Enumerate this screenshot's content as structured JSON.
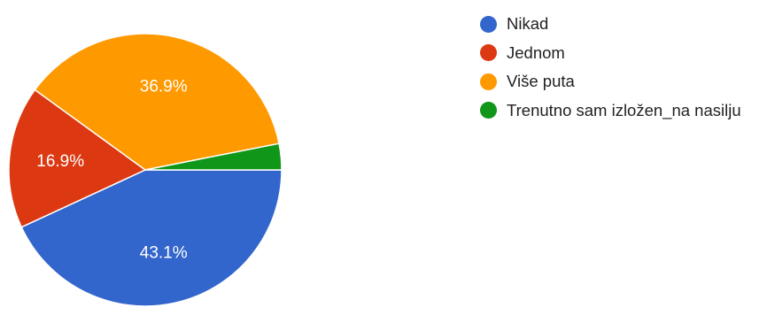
{
  "chart_data": {
    "type": "pie",
    "slices": [
      {
        "name": "Nikad",
        "value": 43.1,
        "label": "43.1%",
        "color": "#3366cc"
      },
      {
        "name": "Jednom",
        "value": 16.9,
        "label": "16.9%",
        "color": "#dc3912"
      },
      {
        "name": "Više puta",
        "value": 36.9,
        "label": "36.9%",
        "color": "#ff9900"
      },
      {
        "name": "Trenutno sam izložen_na nasilju",
        "value": 3.1,
        "label": "",
        "color": "#109618"
      }
    ],
    "legend_position": "right"
  }
}
